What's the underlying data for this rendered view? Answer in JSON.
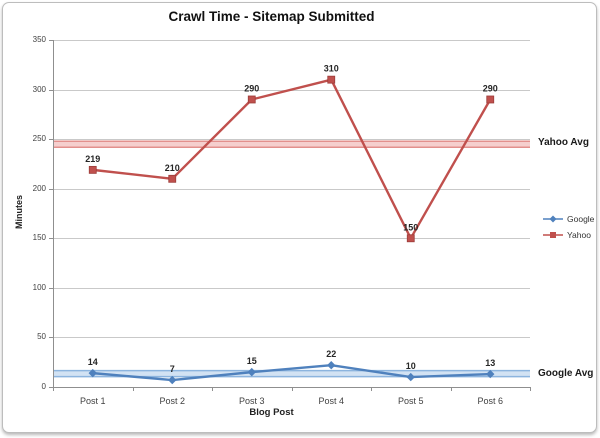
{
  "chart_data": {
    "type": "line",
    "title": "Crawl Time - Sitemap Submitted",
    "xlabel": "Blog Post",
    "ylabel": "Minutes",
    "categories": [
      "Post 1",
      "Post 2",
      "Post 3",
      "Post 4",
      "Post 5",
      "Post 6"
    ],
    "series": [
      {
        "name": "Google",
        "color": "#4F81BD",
        "marker": "diamond",
        "values": [
          14,
          7,
          15,
          22,
          10,
          13
        ]
      },
      {
        "name": "Yahoo",
        "color": "#C0504D",
        "marker": "square",
        "values": [
          219,
          210,
          290,
          310,
          150,
          290
        ]
      }
    ],
    "avg_lines": [
      {
        "label": "Yahoo Avg",
        "value": 244.8,
        "line_color": "#E2908D",
        "fill_color": "#F5CFCE"
      },
      {
        "label": "Google Avg",
        "value": 13.5,
        "line_color": "#8CB4DE",
        "fill_color": "#D2E2F3"
      }
    ],
    "ylim": [
      0,
      350
    ],
    "ytick_step": 50,
    "grid": true,
    "legend_position": "right",
    "data_labels": true,
    "colors": {
      "gridline": "#c9c9c9",
      "axis": "#8f8f8f",
      "data_label": "#262626"
    }
  }
}
